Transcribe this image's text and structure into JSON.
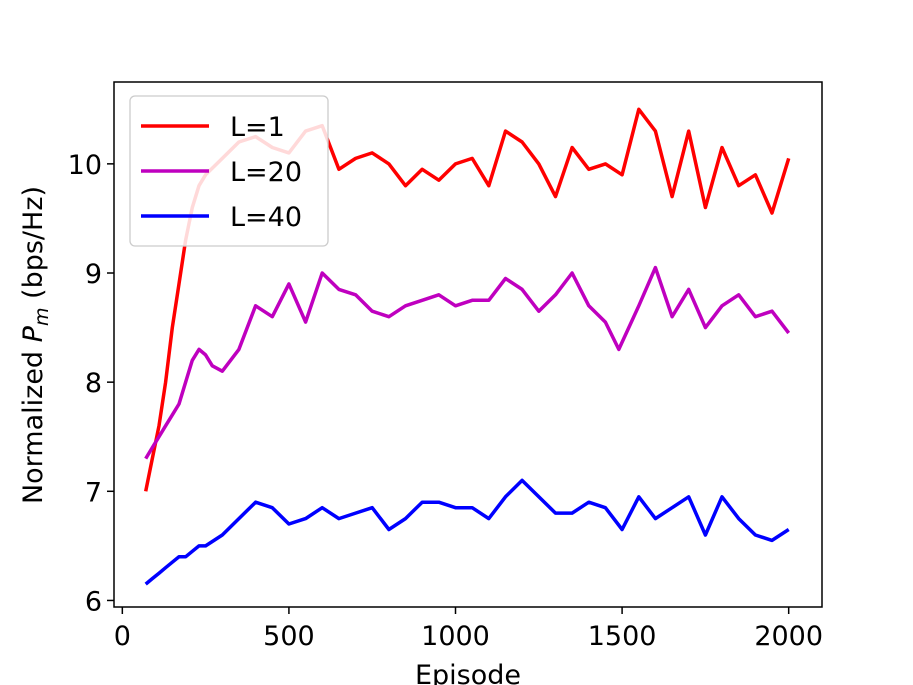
{
  "chart_data": {
    "type": "line",
    "title": "",
    "xlabel": "Episode",
    "ylabel_prefix": "Normalized ",
    "ylabel_symbol": "P",
    "ylabel_subscript": "m",
    "ylabel_suffix": " (bps/Hz)",
    "xlim": [
      -25,
      2100
    ],
    "ylim": [
      5.94,
      10.75
    ],
    "xticks": [
      0,
      500,
      1000,
      1500,
      2000
    ],
    "yticks": [
      6,
      7,
      8,
      9,
      10
    ],
    "grid": false,
    "legend_position": "top-left",
    "series": [
      {
        "name": "L=1",
        "color": "#ff0000",
        "x": [
          70,
          90,
          110,
          130,
          150,
          170,
          190,
          210,
          230,
          250,
          300,
          350,
          400,
          450,
          500,
          550,
          600,
          650,
          700,
          750,
          800,
          850,
          900,
          950,
          1000,
          1050,
          1100,
          1150,
          1200,
          1250,
          1300,
          1350,
          1400,
          1450,
          1500,
          1550,
          1600,
          1650,
          1700,
          1750,
          1800,
          1850,
          1900,
          1950,
          2000
        ],
        "y": [
          7.0,
          7.3,
          7.6,
          8.0,
          8.5,
          8.9,
          9.3,
          9.6,
          9.8,
          9.9,
          10.05,
          10.2,
          10.25,
          10.15,
          10.1,
          10.3,
          10.35,
          9.95,
          10.05,
          10.1,
          10.0,
          9.8,
          9.95,
          9.85,
          10.0,
          10.05,
          9.8,
          10.3,
          10.2,
          10.0,
          9.7,
          10.15,
          9.95,
          10.0,
          9.9,
          10.5,
          10.3,
          9.7,
          10.3,
          9.6,
          10.15,
          9.8,
          9.9,
          9.55,
          10.05
        ]
      },
      {
        "name": "L=20",
        "color": "#bf00bf",
        "x": [
          70,
          90,
          110,
          130,
          150,
          170,
          190,
          210,
          230,
          250,
          270,
          300,
          350,
          400,
          450,
          500,
          550,
          600,
          650,
          700,
          750,
          800,
          850,
          900,
          950,
          1000,
          1050,
          1100,
          1150,
          1200,
          1250,
          1300,
          1350,
          1400,
          1450,
          1490,
          1550,
          1600,
          1650,
          1700,
          1750,
          1800,
          1850,
          1900,
          1950,
          2000
        ],
        "y": [
          7.3,
          7.4,
          7.5,
          7.6,
          7.7,
          7.8,
          8.0,
          8.2,
          8.3,
          8.25,
          8.15,
          8.1,
          8.3,
          8.7,
          8.6,
          8.9,
          8.55,
          9.0,
          8.85,
          8.8,
          8.65,
          8.6,
          8.7,
          8.75,
          8.8,
          8.7,
          8.75,
          8.75,
          8.95,
          8.85,
          8.65,
          8.8,
          9.0,
          8.7,
          8.55,
          8.3,
          8.7,
          9.05,
          8.6,
          8.85,
          8.5,
          8.7,
          8.8,
          8.6,
          8.65,
          8.45
        ]
      },
      {
        "name": "L=40",
        "color": "#0000ff",
        "x": [
          70,
          90,
          110,
          130,
          150,
          170,
          190,
          210,
          230,
          250,
          300,
          350,
          400,
          450,
          500,
          550,
          600,
          650,
          700,
          750,
          800,
          850,
          900,
          950,
          1000,
          1050,
          1100,
          1150,
          1200,
          1250,
          1300,
          1350,
          1400,
          1450,
          1500,
          1550,
          1600,
          1650,
          1700,
          1750,
          1800,
          1850,
          1900,
          1950,
          2000
        ],
        "y": [
          6.15,
          6.2,
          6.25,
          6.3,
          6.35,
          6.4,
          6.4,
          6.45,
          6.5,
          6.5,
          6.6,
          6.75,
          6.9,
          6.85,
          6.7,
          6.75,
          6.85,
          6.75,
          6.8,
          6.85,
          6.65,
          6.75,
          6.9,
          6.9,
          6.85,
          6.85,
          6.75,
          6.95,
          7.1,
          6.95,
          6.8,
          6.8,
          6.9,
          6.85,
          6.65,
          6.95,
          6.75,
          6.85,
          6.95,
          6.6,
          6.95,
          6.75,
          6.6,
          6.55,
          6.65
        ]
      }
    ]
  }
}
